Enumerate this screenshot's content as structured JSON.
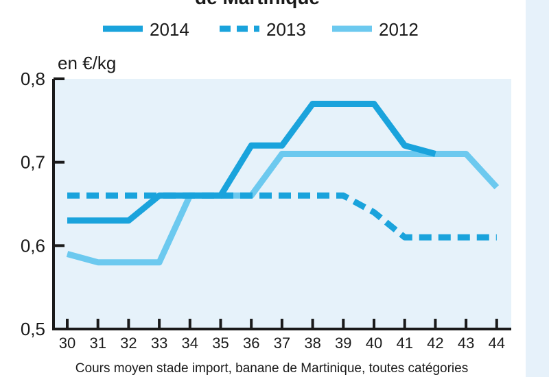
{
  "chart_data": {
    "type": "line",
    "title": "de Martinique",
    "unit_label": "en €/kg",
    "xlabel": "Cours moyen stade import, banane de Martinique, toutes catégories",
    "ylabel": "",
    "x": [
      30,
      31,
      32,
      33,
      34,
      35,
      36,
      37,
      38,
      39,
      40,
      41,
      42,
      43,
      44
    ],
    "ylim": [
      0.5,
      0.8
    ],
    "yticks": [
      0.5,
      0.6,
      0.7,
      0.8
    ],
    "ytick_labels": [
      "0,5",
      "0,6",
      "0,7",
      "0,8"
    ],
    "grid": false,
    "legend_position": "top",
    "series": [
      {
        "name": "2014",
        "style": "solid",
        "color": "#1aa3dc",
        "x": [
          30,
          31,
          32,
          33,
          34,
          35,
          36,
          37,
          38,
          39,
          40,
          41,
          42
        ],
        "values": [
          0.63,
          0.63,
          0.63,
          0.66,
          0.66,
          0.66,
          0.72,
          0.72,
          0.77,
          0.77,
          0.77,
          0.72,
          0.71
        ]
      },
      {
        "name": "2013",
        "style": "dashed",
        "color": "#1aa3dc",
        "x": [
          30,
          31,
          32,
          33,
          34,
          35,
          36,
          37,
          38,
          39,
          40,
          41,
          42,
          43,
          44
        ],
        "values": [
          0.66,
          0.66,
          0.66,
          0.66,
          0.66,
          0.66,
          0.66,
          0.66,
          0.66,
          0.66,
          0.64,
          0.61,
          0.61,
          0.61,
          0.61
        ]
      },
      {
        "name": "2012",
        "style": "solid",
        "color": "#6cc9ef",
        "x": [
          30,
          31,
          32,
          33,
          34,
          35,
          36,
          37,
          38,
          39,
          40,
          41,
          42,
          43,
          44
        ],
        "values": [
          0.59,
          0.58,
          0.58,
          0.58,
          0.66,
          0.66,
          0.66,
          0.71,
          0.71,
          0.71,
          0.71,
          0.71,
          0.71,
          0.71,
          0.67
        ]
      }
    ],
    "colors": {
      "plot_background": "#e6f2fa",
      "axis": "#1a1a1a",
      "side_band": "#e6f1fa"
    }
  }
}
